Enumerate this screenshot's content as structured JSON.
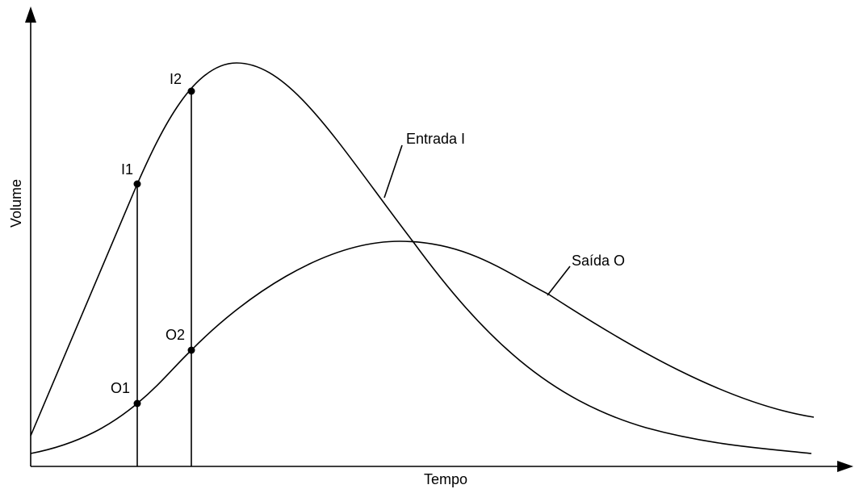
{
  "axes": {
    "y_label": "Volume",
    "x_label": "Tempo"
  },
  "curves": [
    {
      "label": "Entrada I"
    },
    {
      "label": "Saída O"
    }
  ],
  "points": [
    "I1",
    "I2",
    "O1",
    "O2"
  ]
}
